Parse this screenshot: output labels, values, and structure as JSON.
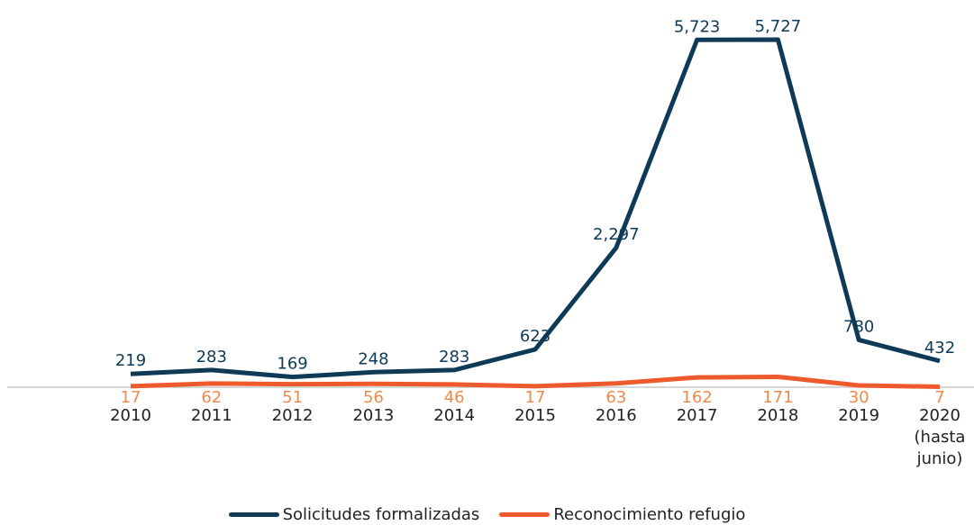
{
  "chart_data": {
    "type": "line",
    "categories": [
      "2010",
      "2011",
      "2012",
      "2013",
      "2014",
      "2015",
      "2016",
      "2017",
      "2018",
      "2019",
      "2020 (hasta junio)"
    ],
    "series": [
      {
        "name": "Solicitudes formalizadas",
        "color": "#0e3a57",
        "values": [
          219,
          283,
          169,
          248,
          283,
          623,
          2297,
          5723,
          5727,
          780,
          432
        ],
        "value_labels": [
          "219",
          "283",
          "169",
          "248",
          "283",
          "623",
          "2,297",
          "5,723",
          "5,727",
          "780",
          "432"
        ]
      },
      {
        "name": "Reconocimiento refugio",
        "color": "#ee5a2c",
        "values": [
          17,
          62,
          51,
          56,
          46,
          17,
          63,
          162,
          171,
          30,
          7
        ]
      }
    ],
    "ylim": [
      0,
      5727
    ]
  }
}
